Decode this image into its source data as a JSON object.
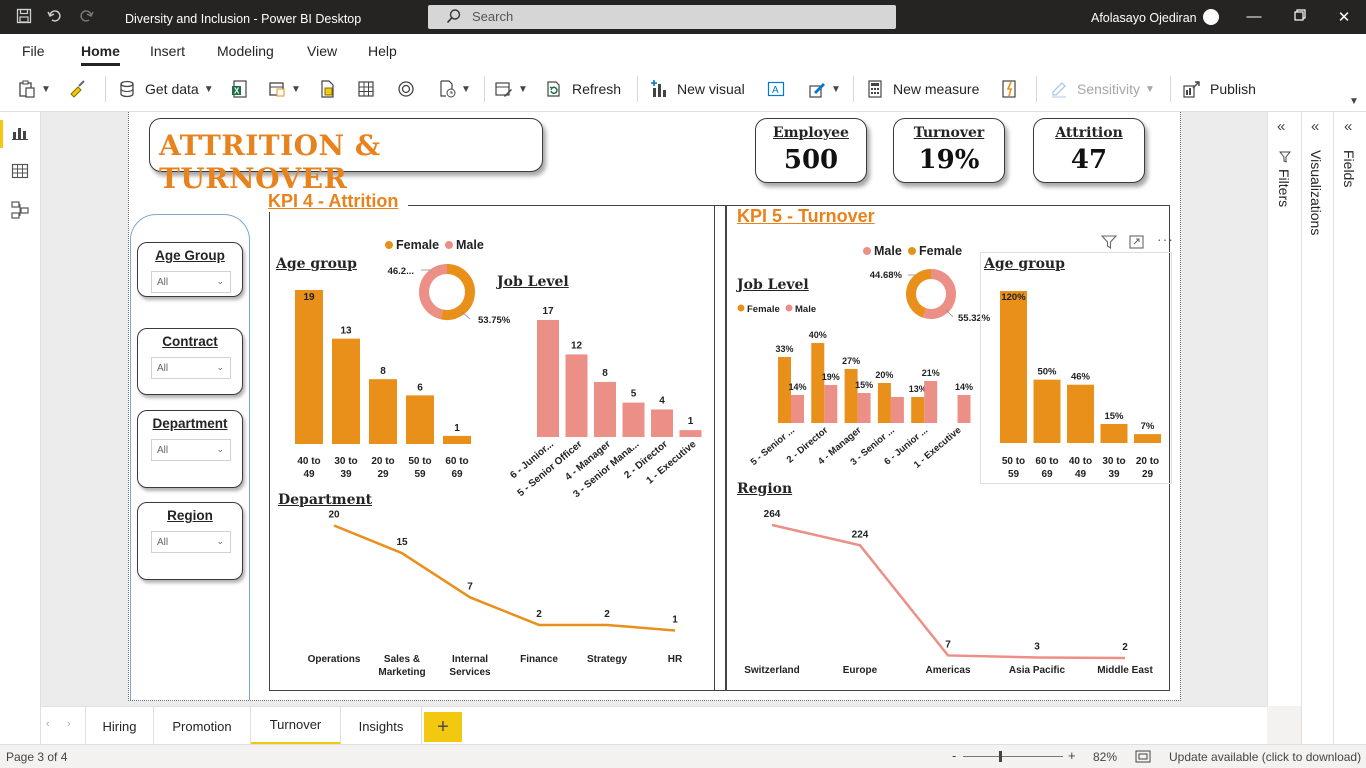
{
  "window": {
    "title": "Diversity and Inclusion - Power BI Desktop",
    "search_placeholder": "Search",
    "user_name": "Afolasayo Ojediran"
  },
  "menu": {
    "items": [
      "File",
      "Home",
      "Insert",
      "Modeling",
      "View",
      "Help"
    ],
    "active": "Home"
  },
  "ribbon": {
    "get_data": "Get data",
    "refresh": "Refresh",
    "new_visual": "New visual",
    "new_measure": "New measure",
    "sensitivity": "Sensitivity",
    "publish": "Publish"
  },
  "panes": {
    "filters": "Filters",
    "visualizations": "Visualizations",
    "fields": "Fields"
  },
  "report": {
    "title": "ATTRITION & TURNOVER",
    "cards": [
      {
        "label": "Employee",
        "value": "500"
      },
      {
        "label": "Turnover",
        "value": "19%"
      },
      {
        "label": "Attrition",
        "value": "47"
      }
    ],
    "slicers": [
      {
        "title": "Age Group",
        "value": "All"
      },
      {
        "title": "Contract",
        "value": "All"
      },
      {
        "title": "Department",
        "value": "All"
      },
      {
        "title": "Region",
        "value": "All"
      }
    ],
    "kpi4_heading": "KPI 4 - Attrition",
    "kpi5_heading": "KPI 5 - Turnover",
    "chart_titles": {
      "k4_age": "Age group",
      "k4_job": "Job Level",
      "k4_dept": "Department",
      "k5_job": "Job Level",
      "k5_age": "Age group",
      "k5_region": "Region"
    },
    "legend": {
      "female": "Female",
      "male": "Male"
    }
  },
  "chart_data": [
    {
      "id": "k4_age",
      "type": "bar",
      "title": "Age group",
      "categories": [
        "40 to 49",
        "30 to 39",
        "20 to 29",
        "50 to 59",
        "60 to 69"
      ],
      "values": [
        19,
        13,
        8,
        6,
        1
      ],
      "color": "#e8901a"
    },
    {
      "id": "k4_gender",
      "type": "pie",
      "labels": [
        "Female",
        "Male"
      ],
      "values": [
        53.75,
        46.25
      ],
      "data_labels": [
        "53.75%",
        "46.2..."
      ],
      "colors": [
        "#e8901a",
        "#ec8f86"
      ]
    },
    {
      "id": "k4_job",
      "type": "bar",
      "title": "Job Level",
      "categories": [
        "6 - Junior...",
        "5 - Senior Officer",
        "4 - Manager",
        "3 - Senior Mana...",
        "2 - Director",
        "1 - Executive"
      ],
      "values": [
        17,
        12,
        8,
        5,
        4,
        1
      ],
      "color": "#ec8f86"
    },
    {
      "id": "k4_dept",
      "type": "line",
      "title": "Department",
      "categories": [
        "Operations",
        "Sales & Marketing",
        "Internal Services",
        "Finance",
        "Strategy",
        "HR"
      ],
      "values": [
        20,
        15,
        7,
        2,
        2,
        1
      ],
      "color": "#e8901a"
    },
    {
      "id": "k5_gender",
      "type": "pie",
      "labels": [
        "Male",
        "Female"
      ],
      "values": [
        55.32,
        44.68
      ],
      "data_labels": [
        "55.32%",
        "44.68%"
      ],
      "colors": [
        "#ec8f86",
        "#e8901a"
      ]
    },
    {
      "id": "k5_job",
      "type": "bar",
      "title": "Job Level",
      "categories": [
        "5 - Senior ...",
        "2 - Director",
        "4 - Manager",
        "3 - Senior ...",
        "6 - Junior ...",
        "1 - Executive"
      ],
      "series": [
        {
          "name": "Female",
          "values": [
            33,
            40,
            27,
            20,
            13,
            null
          ],
          "labels": [
            "33%",
            "40%",
            "27%",
            "20%",
            "13%",
            ""
          ]
        },
        {
          "name": "Male",
          "values": [
            14,
            19,
            15,
            13,
            21,
            14
          ],
          "labels": [
            "14%",
            "19%",
            "15%",
            "",
            "21%",
            "14%"
          ]
        }
      ],
      "colors": [
        "#e8901a",
        "#ec8f86"
      ]
    },
    {
      "id": "k5_age",
      "type": "bar",
      "title": "Age group",
      "categories": [
        "50 to 59",
        "60 to 69",
        "40 to 49",
        "30 to 39",
        "20 to 29"
      ],
      "values": [
        120,
        50,
        46,
        15,
        7
      ],
      "labels": [
        "120%",
        "50%",
        "46%",
        "15%",
        "7%"
      ],
      "color": "#e8901a"
    },
    {
      "id": "k5_region",
      "type": "line",
      "title": "Region",
      "categories": [
        "Switzerland",
        "Europe",
        "Americas",
        "Asia Pacific",
        "Middle East"
      ],
      "values": [
        264,
        224,
        7,
        3,
        2
      ],
      "color": "#ec8f86"
    }
  ],
  "tabs": [
    "Hiring",
    "Promotion",
    "Turnover",
    "Insights"
  ],
  "active_tab": "Turnover",
  "status": {
    "page": "Page 3 of 4",
    "zoom": "82%",
    "update": "Update available (click to download)"
  }
}
